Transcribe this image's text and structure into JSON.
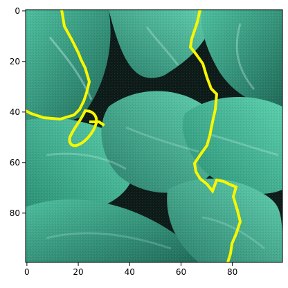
{
  "axes": {
    "x_ticks": [
      {
        "value": 0,
        "label": "0"
      },
      {
        "value": 20,
        "label": "20"
      },
      {
        "value": 40,
        "label": "40"
      },
      {
        "value": 60,
        "label": "60"
      },
      {
        "value": 80,
        "label": "80"
      }
    ],
    "y_ticks": [
      {
        "value": 0,
        "label": "0"
      },
      {
        "value": 20,
        "label": "20"
      },
      {
        "value": 40,
        "label": "40"
      },
      {
        "value": 60,
        "label": "60"
      },
      {
        "value": 80,
        "label": "80"
      }
    ],
    "x_range": [
      -0.5,
      99.5
    ],
    "y_range": [
      -0.5,
      99.5
    ]
  },
  "image": {
    "description_palette": {
      "leaf_dark": "#1d5a4c",
      "leaf_mid": "#2f8a73",
      "leaf_light": "#56c8a6",
      "shadow": "#0d1b18",
      "boundary": "#f7f700"
    }
  }
}
